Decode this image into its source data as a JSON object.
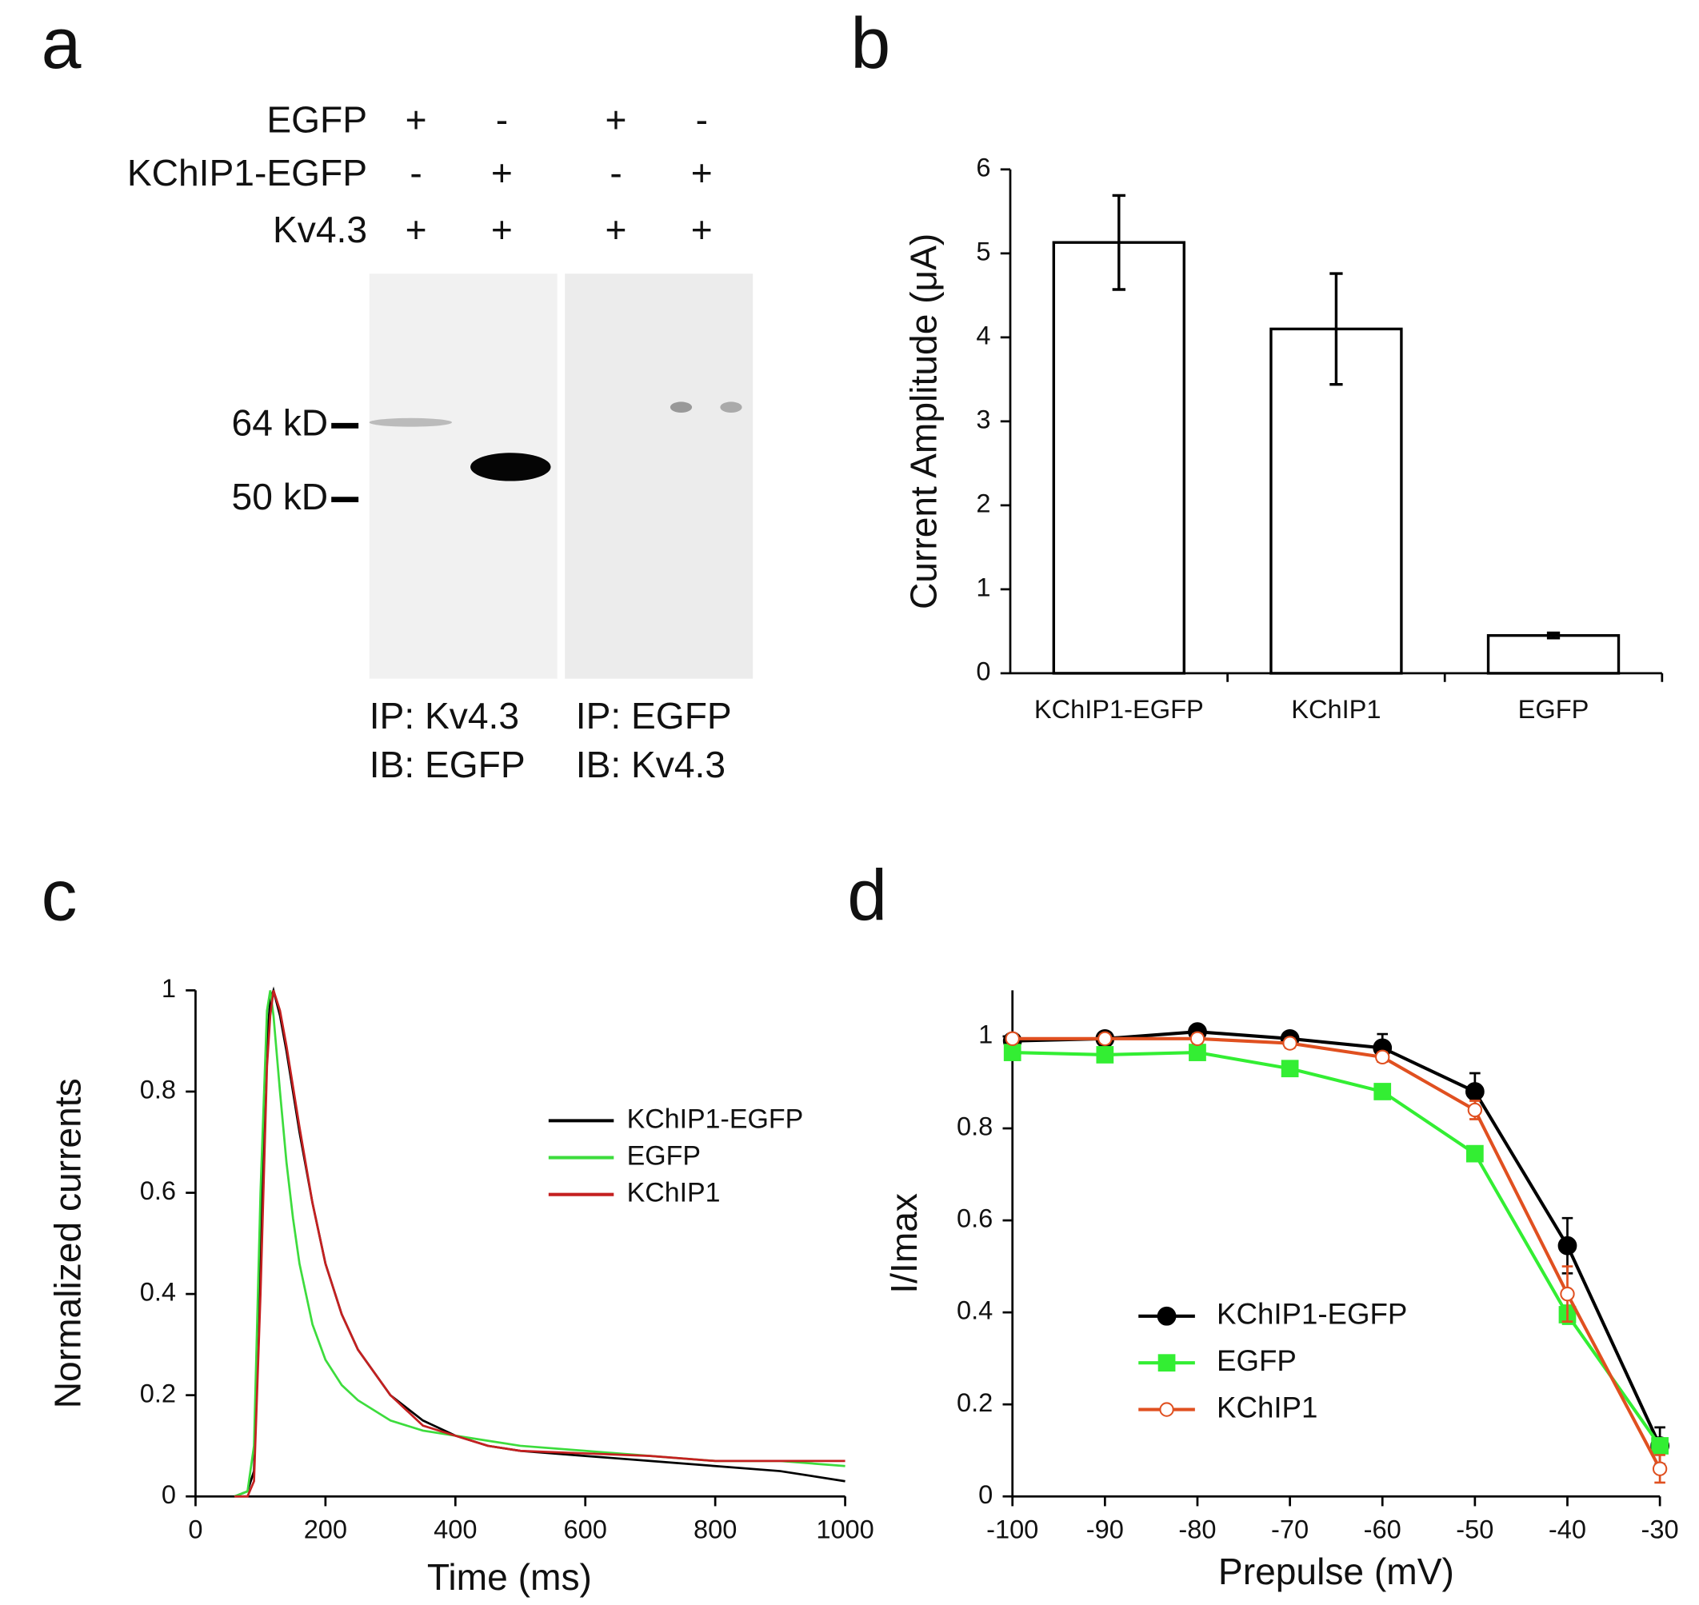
{
  "blot": {
    "label": "a",
    "rows": [
      {
        "name": "EGFP",
        "signs": [
          "+",
          "-",
          "+",
          "-"
        ]
      },
      {
        "name": "KChIP1-EGFP",
        "signs": [
          "-",
          "+",
          "-",
          "+"
        ]
      },
      {
        "name": "Kv4.3",
        "signs": [
          "+",
          "+",
          "+",
          "+"
        ]
      }
    ],
    "markers": [
      "64 kD",
      "50 kD"
    ],
    "captions": [
      [
        "IP: Kv4.3",
        "IB: EGFP"
      ],
      [
        "IP: EGFP",
        "IB: Kv4.3"
      ]
    ]
  },
  "chart_data": [
    {
      "type": "bar",
      "label": "b",
      "y_label": "Current Amplitude (μA)",
      "categories": [
        "KChIP1-EGFP",
        "KChIP1",
        "EGFP"
      ],
      "values": [
        5.13,
        4.1,
        0.45
      ],
      "errors": [
        0.56,
        0.66,
        0.03
      ],
      "color": "#ffffff",
      "ylim": [
        0,
        6
      ],
      "yticks": [
        0,
        1,
        2,
        3,
        4,
        5,
        6
      ]
    },
    {
      "type": "line",
      "label": "c",
      "x_label": "Time (ms)",
      "y_label": "Normalized currents",
      "x": [
        60,
        80,
        90,
        100,
        110,
        115,
        120,
        130,
        140,
        150,
        160,
        180,
        200,
        225,
        250,
        300,
        350,
        400,
        450,
        500,
        600,
        700,
        800,
        900,
        1000
      ],
      "series": [
        {
          "name": "KChIP1-EGFP",
          "color": "#000000",
          "values": [
            0,
            0.01,
            0.05,
            0.5,
            0.9,
            0.98,
            1.0,
            0.95,
            0.88,
            0.8,
            0.72,
            0.58,
            0.46,
            0.36,
            0.29,
            0.2,
            0.15,
            0.12,
            0.1,
            0.09,
            0.08,
            0.07,
            0.06,
            0.05,
            0.03
          ]
        },
        {
          "name": "EGFP",
          "color": "#3ddc3d",
          "values": [
            0,
            0.01,
            0.1,
            0.6,
            0.96,
            1.0,
            0.95,
            0.8,
            0.66,
            0.55,
            0.46,
            0.34,
            0.27,
            0.22,
            0.19,
            0.15,
            0.13,
            0.12,
            0.11,
            0.1,
            0.09,
            0.08,
            0.07,
            0.07,
            0.06
          ]
        },
        {
          "name": "KChIP1",
          "color": "#c42020",
          "values": [
            0,
            0,
            0.03,
            0.4,
            0.85,
            0.95,
            1.0,
            0.96,
            0.89,
            0.81,
            0.73,
            0.58,
            0.46,
            0.36,
            0.29,
            0.2,
            0.14,
            0.12,
            0.1,
            0.09,
            0.085,
            0.08,
            0.07,
            0.07,
            0.07
          ]
        }
      ],
      "xlim": [
        0,
        1000
      ],
      "xticks": [
        0,
        200,
        400,
        600,
        800,
        1000
      ],
      "ylim": [
        0,
        1
      ],
      "yticks": [
        0,
        0.2,
        0.4,
        0.6,
        0.8,
        1
      ]
    },
    {
      "type": "line",
      "label": "d",
      "x_label": "Prepulse (mV)",
      "y_label": "I/Imax",
      "x": [
        -100,
        -90,
        -80,
        -70,
        -60,
        -50,
        -40,
        -30
      ],
      "series": [
        {
          "name": "KChIP1-EGFP",
          "color": "#000000",
          "marker": "circle",
          "values": [
            0.99,
            0.995,
            1.01,
            0.995,
            0.975,
            0.88,
            0.545,
            0.11
          ],
          "errors": [
            0.01,
            0.01,
            0.01,
            0.01,
            0.03,
            0.04,
            0.06,
            0.04
          ]
        },
        {
          "name": "EGFP",
          "color": "#33ee33",
          "marker": "square",
          "values": [
            0.965,
            0.96,
            0.965,
            0.93,
            0.88,
            0.745,
            0.395,
            0.11
          ],
          "errors": [
            0.01,
            0.01,
            0.01,
            0.01,
            0.01,
            0.01,
            0.02,
            0.01
          ]
        },
        {
          "name": "KChIP1",
          "color": "#e05020",
          "marker": "open-circle",
          "values": [
            0.995,
            0.995,
            0.995,
            0.985,
            0.955,
            0.84,
            0.44,
            0.06
          ],
          "errors": [
            0.01,
            0.01,
            0.01,
            0.01,
            0.01,
            0.02,
            0.06,
            0.03
          ]
        }
      ],
      "xlim": [
        -100,
        -30
      ],
      "xticks": [
        -100,
        -90,
        -80,
        -70,
        -60,
        -50,
        -40,
        -30
      ],
      "ylim": [
        0,
        1.1
      ],
      "yticks": [
        0,
        0.2,
        0.4,
        0.6,
        0.8,
        1
      ]
    }
  ]
}
